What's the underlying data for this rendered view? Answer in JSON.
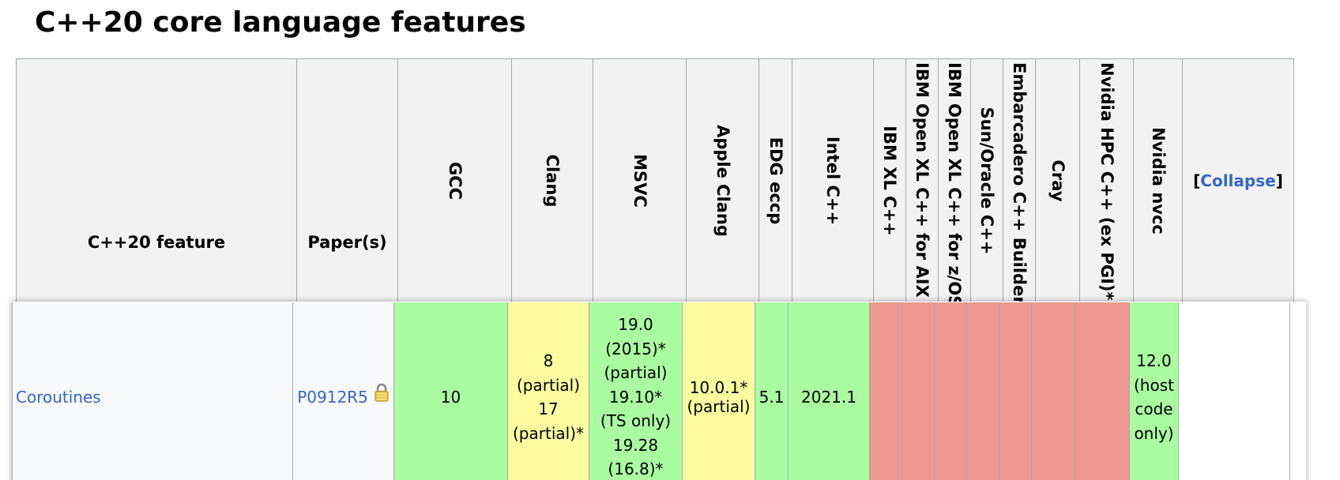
{
  "page_title": "C++20 core language features",
  "colors": {
    "header_bg": "#f2f2f2",
    "row_bg": "#f8f9fa",
    "yes": "#a9fca0",
    "partial": "#fffca0",
    "no": "#ec9890",
    "link": "#3366cc",
    "border": "#a2a9b1"
  },
  "headers": [
    {
      "label": "C++20 feature",
      "orientation": "horizontal"
    },
    {
      "label": "Paper(s)",
      "orientation": "horizontal"
    },
    {
      "label": "GCC",
      "orientation": "vertical"
    },
    {
      "label": "Clang",
      "orientation": "vertical"
    },
    {
      "label": "MSVC",
      "orientation": "vertical"
    },
    {
      "label": "Apple Clang",
      "orientation": "vertical"
    },
    {
      "label": "EDG eccp",
      "orientation": "vertical"
    },
    {
      "label": "Intel C++",
      "orientation": "vertical"
    },
    {
      "label": "IBM XL C++",
      "orientation": "vertical"
    },
    {
      "label": "IBM Open XL C++ for AIX",
      "orientation": "vertical"
    },
    {
      "label": "IBM Open XL C++ for z/OS",
      "orientation": "vertical"
    },
    {
      "label": "Sun/Oracle C++",
      "orientation": "vertical"
    },
    {
      "label": "Embarcadero C++ Builder",
      "orientation": "vertical"
    },
    {
      "label": "Cray",
      "orientation": "vertical"
    },
    {
      "label": "Nvidia HPC C++ (ex PGI)*",
      "orientation": "vertical"
    },
    {
      "label": "Nvidia nvcc",
      "orientation": "vertical"
    }
  ],
  "collapse": {
    "open_bracket": "[",
    "label": "Collapse",
    "close_bracket": "]"
  },
  "row": {
    "feature": "Coroutines",
    "paper": "P0912R5",
    "paper_icon": "lock-icon",
    "cells": [
      {
        "text": "10",
        "status": "yes"
      },
      {
        "text": "8\n(partial)\n17\n(partial)*",
        "status": "partial"
      },
      {
        "text": "19.0\n(2015)*\n(partial)\n19.10*\n(TS only)\n19.28\n(16.8)*",
        "status": "yes"
      },
      {
        "text": "10.0.1*\n(partial)",
        "status": "partial"
      },
      {
        "text": "5.1",
        "status": "yes"
      },
      {
        "text": "2021.1",
        "status": "yes"
      },
      {
        "text": "",
        "status": "no"
      },
      {
        "text": "",
        "status": "no"
      },
      {
        "text": "",
        "status": "no"
      },
      {
        "text": "",
        "status": "no"
      },
      {
        "text": "",
        "status": "no"
      },
      {
        "text": "",
        "status": "no"
      },
      {
        "text": "",
        "status": "no"
      },
      {
        "text": "12.0\n(host\ncode\nonly)",
        "status": "yes"
      }
    ]
  }
}
